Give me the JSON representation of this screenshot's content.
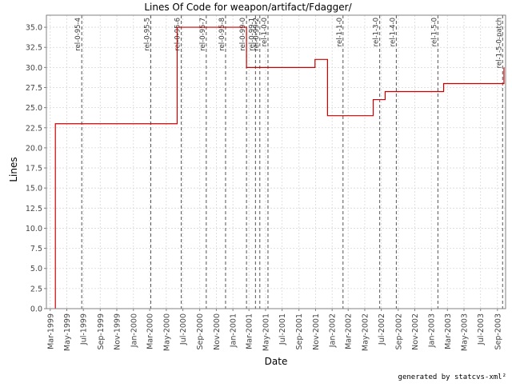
{
  "footer": "generated by statcvs-xml²",
  "chart_data": {
    "type": "line",
    "title": "Lines Of Code for weapon/artifact/Fdagger/",
    "xlabel": "Date",
    "ylabel": "Lines",
    "xlim": [
      "1999-02-15",
      "2003-10-01"
    ],
    "ylim": [
      0,
      36.5
    ],
    "grid": true,
    "step": true,
    "line_color": "#cc0000",
    "marker_color": "#555555",
    "x_ticks": [
      "1999-03-01",
      "1999-05-01",
      "1999-07-01",
      "1999-09-01",
      "1999-11-01",
      "2000-01-01",
      "2000-03-01",
      "2000-05-01",
      "2000-07-01",
      "2000-09-01",
      "2000-11-01",
      "2001-01-01",
      "2001-03-01",
      "2001-05-01",
      "2001-07-01",
      "2001-09-01",
      "2001-11-01",
      "2002-01-01",
      "2002-03-01",
      "2002-05-01",
      "2002-07-01",
      "2002-09-01",
      "2002-11-01",
      "2003-01-01",
      "2003-03-01",
      "2003-05-01",
      "2003-07-01",
      "2003-09-01"
    ],
    "x_tick_labels": [
      "Mar-1999",
      "May-1999",
      "Jul-1999",
      "Sep-1999",
      "Nov-1999",
      "Jan-2000",
      "Mar-2000",
      "May-2000",
      "Jul-2000",
      "Sep-2000",
      "Nov-2000",
      "Jan-2001",
      "Mar-2001",
      "May-2001",
      "Jul-2001",
      "Sep-2001",
      "Nov-2001",
      "Jan-2002",
      "Mar-2002",
      "May-2002",
      "Jul-2002",
      "Sep-2002",
      "Nov-2002",
      "Jan-2003",
      "Mar-2003",
      "May-2003",
      "Jul-2003",
      "Sep-2003"
    ],
    "y_ticks": [
      0,
      2.5,
      5,
      7.5,
      10,
      12.5,
      15,
      17.5,
      20,
      22.5,
      25,
      27.5,
      30,
      32.5,
      35
    ],
    "y_tick_labels": [
      "0.0",
      "2.5",
      "5.0",
      "7.5",
      "10.0",
      "12.5",
      "15.0",
      "17.5",
      "20.0",
      "22.5",
      "25.0",
      "27.5",
      "30.0",
      "32.5",
      "35.0"
    ],
    "series": [
      {
        "x": [
          "1999-03-20",
          "2000-06-10",
          "2001-02-20",
          "2001-10-30",
          "2001-12-15",
          "2002-06-01",
          "2002-07-15",
          "2003-02-15",
          "2003-09-25"
        ],
        "y": [
          23,
          35,
          30,
          31,
          24,
          26,
          27,
          28,
          30
        ]
      }
    ],
    "series_end": "2003-09-25",
    "series_start_y": 0,
    "markers": [
      {
        "label": "rel-0-95-4",
        "date": "1999-06-25"
      },
      {
        "label": "rel-0-95-5",
        "date": "2000-03-05"
      },
      {
        "label": "rel-0-95-6",
        "date": "2000-06-25"
      },
      {
        "label": "rel-0-95-7",
        "date": "2000-09-25"
      },
      {
        "label": "rel-0-95-8",
        "date": "2000-12-05"
      },
      {
        "label": "rel-0-99-0",
        "date": "2001-02-20"
      },
      {
        "label": "rel-0-99-1",
        "date": "2001-03-25"
      },
      {
        "label": "rel-0-99-2",
        "date": "2001-04-10"
      },
      {
        "label": "rel-1-0-0",
        "date": "2001-05-10"
      },
      {
        "label": "rel-1-1-0",
        "date": "2002-02-10"
      },
      {
        "label": "rel-1-3-0",
        "date": "2002-06-25"
      },
      {
        "label": "rel-1-4-0",
        "date": "2002-08-25"
      },
      {
        "label": "rel-1-5-0",
        "date": "2003-01-25"
      },
      {
        "label": "rel-1-5-0-patch",
        "date": "2003-09-20"
      }
    ]
  }
}
